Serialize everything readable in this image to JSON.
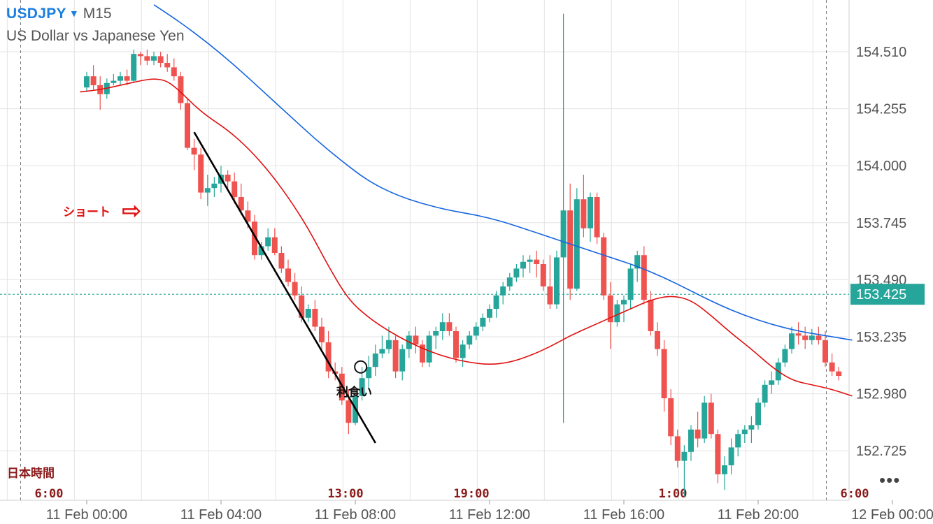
{
  "header": {
    "symbol": "USDJPY",
    "caret": "▼",
    "timeframe": "M15",
    "description": "US Dollar vs Japanese Yen"
  },
  "more_menu": "•••",
  "colors": {
    "bull": "#26a69a",
    "bear": "#ef5350",
    "ma_fast": "#e01010",
    "ma_slow": "#1565e0",
    "grid": "#e3e3e3",
    "price_tag": "#26a69a",
    "annotation_red": "#e01010",
    "jst_label": "#8b1a1a"
  },
  "chart_data": {
    "type": "candlestick",
    "symbol": "USDJPY",
    "timeframe": "M15",
    "y_ticks": [
      "154.510",
      "154.255",
      "154.000",
      "153.745",
      "153.490",
      "153.235",
      "152.980",
      "152.725"
    ],
    "ylim": [
      152.58,
      154.72
    ],
    "x_ticks": [
      "11 Feb 00:00",
      "11 Feb 04:00",
      "11 Feb 08:00",
      "11 Feb 12:00",
      "11 Feb 16:00",
      "11 Feb 20:00",
      "12 Feb 00:00"
    ],
    "x_tick_index": [
      0,
      20,
      40,
      60,
      80,
      100,
      120
    ],
    "current_price": "153.425",
    "current_price_value": 153.425,
    "jst_title": "日本時間",
    "jst_labels": [
      {
        "label": "6:00",
        "index": -10
      },
      {
        "label": "13:00",
        "index": 40
      },
      {
        "label": "19:00",
        "index": 60
      },
      {
        "label": "1:00",
        "index": 90
      },
      {
        "label": "6:00",
        "index": 110
      }
    ],
    "annotations": {
      "short_label": "ショート",
      "short_arrow": "⇨",
      "take_profit_label": "利食い"
    },
    "candles": [
      [
        154.35,
        154.42,
        154.33,
        154.4
      ],
      [
        154.4,
        154.45,
        154.34,
        154.36
      ],
      [
        154.36,
        154.4,
        154.25,
        154.32
      ],
      [
        154.32,
        154.39,
        154.3,
        154.37
      ],
      [
        154.37,
        154.41,
        154.36,
        154.38
      ],
      [
        154.38,
        154.42,
        154.36,
        154.4
      ],
      [
        154.4,
        154.43,
        154.36,
        154.38
      ],
      [
        154.38,
        154.52,
        154.37,
        154.5
      ],
      [
        154.5,
        154.51,
        154.45,
        154.49
      ],
      [
        154.49,
        154.52,
        154.45,
        154.47
      ],
      [
        154.47,
        154.51,
        154.45,
        154.49
      ],
      [
        154.49,
        154.51,
        154.44,
        154.46
      ],
      [
        154.46,
        154.5,
        154.42,
        154.44
      ],
      [
        154.44,
        154.48,
        154.38,
        154.4
      ],
      [
        154.4,
        154.42,
        154.25,
        154.28
      ],
      [
        154.28,
        154.3,
        154.07,
        154.08
      ],
      [
        154.08,
        154.12,
        153.98,
        154.05
      ],
      [
        154.05,
        154.08,
        153.85,
        153.88
      ],
      [
        153.88,
        153.96,
        153.82,
        153.9
      ],
      [
        153.9,
        153.95,
        153.86,
        153.92
      ],
      [
        153.92,
        154.0,
        153.88,
        153.96
      ],
      [
        153.96,
        153.98,
        153.9,
        153.93
      ],
      [
        153.93,
        153.97,
        153.83,
        153.86
      ],
      [
        153.86,
        153.92,
        153.78,
        153.8
      ],
      [
        153.8,
        153.84,
        153.72,
        153.75
      ],
      [
        153.75,
        153.78,
        153.58,
        153.6
      ],
      [
        153.6,
        153.66,
        153.58,
        153.64
      ],
      [
        153.64,
        153.72,
        153.62,
        153.68
      ],
      [
        153.68,
        153.72,
        153.6,
        153.61
      ],
      [
        153.61,
        153.64,
        153.52,
        153.54
      ],
      [
        153.54,
        153.58,
        153.46,
        153.48
      ],
      [
        153.48,
        153.52,
        153.4,
        153.42
      ],
      [
        153.42,
        153.46,
        153.3,
        153.32
      ],
      [
        153.32,
        153.38,
        153.3,
        153.36
      ],
      [
        153.36,
        153.4,
        153.26,
        153.28
      ],
      [
        153.28,
        153.32,
        153.18,
        153.21
      ],
      [
        153.21,
        153.26,
        153.05,
        153.08
      ],
      [
        153.08,
        153.12,
        153.04,
        153.07
      ],
      [
        153.07,
        153.1,
        152.93,
        152.95
      ],
      [
        152.95,
        153.0,
        152.8,
        152.85
      ],
      [
        152.85,
        152.98,
        152.84,
        152.97
      ],
      [
        152.97,
        153.1,
        152.95,
        153.05
      ],
      [
        153.05,
        153.15,
        153.0,
        153.1
      ],
      [
        153.1,
        153.2,
        153.06,
        153.16
      ],
      [
        153.16,
        153.24,
        153.14,
        153.18
      ],
      [
        153.18,
        153.28,
        153.16,
        153.22
      ],
      [
        153.22,
        153.24,
        153.05,
        153.08
      ],
      [
        153.08,
        153.2,
        153.04,
        153.18
      ],
      [
        153.18,
        153.26,
        153.14,
        153.24
      ],
      [
        153.24,
        153.28,
        153.16,
        153.2
      ],
      [
        153.2,
        153.22,
        153.1,
        153.12
      ],
      [
        153.12,
        153.26,
        153.1,
        153.24
      ],
      [
        153.24,
        153.28,
        153.18,
        153.26
      ],
      [
        153.26,
        153.34,
        153.22,
        153.3
      ],
      [
        153.3,
        153.34,
        153.24,
        153.26
      ],
      [
        153.26,
        153.28,
        153.12,
        153.14
      ],
      [
        153.14,
        153.22,
        153.1,
        153.2
      ],
      [
        153.2,
        153.26,
        153.18,
        153.24
      ],
      [
        153.24,
        153.3,
        153.22,
        153.28
      ],
      [
        153.28,
        153.34,
        153.26,
        153.32
      ],
      [
        153.32,
        153.38,
        153.3,
        153.36
      ],
      [
        153.36,
        153.44,
        153.32,
        153.42
      ],
      [
        153.42,
        153.48,
        153.38,
        153.46
      ],
      [
        153.46,
        153.52,
        153.44,
        153.5
      ],
      [
        153.5,
        153.56,
        153.48,
        153.54
      ],
      [
        153.54,
        153.6,
        153.5,
        153.57
      ],
      [
        153.57,
        153.6,
        153.52,
        153.58
      ],
      [
        153.58,
        153.62,
        153.5,
        153.56
      ],
      [
        153.56,
        153.58,
        153.44,
        153.46
      ],
      [
        153.46,
        153.6,
        153.36,
        153.38
      ],
      [
        153.38,
        153.62,
        153.36,
        153.59
      ],
      [
        153.59,
        154.68,
        152.85,
        153.8
      ],
      [
        153.8,
        153.92,
        153.4,
        153.45
      ],
      [
        153.45,
        153.9,
        153.44,
        153.85
      ],
      [
        153.85,
        153.96,
        153.68,
        153.72
      ],
      [
        153.72,
        153.88,
        153.66,
        153.86
      ],
      [
        153.86,
        153.88,
        153.65,
        153.68
      ],
      [
        153.68,
        153.7,
        153.4,
        153.42
      ],
      [
        153.42,
        153.48,
        153.18,
        153.3
      ],
      [
        153.3,
        153.4,
        153.28,
        153.38
      ],
      [
        153.38,
        153.42,
        153.3,
        153.4
      ],
      [
        153.4,
        153.56,
        153.36,
        153.54
      ],
      [
        153.54,
        153.62,
        153.48,
        153.6
      ],
      [
        153.6,
        153.64,
        153.38,
        153.4
      ],
      [
        153.4,
        153.44,
        153.24,
        153.26
      ],
      [
        153.26,
        153.3,
        153.15,
        153.18
      ],
      [
        153.18,
        153.22,
        152.9,
        152.96
      ],
      [
        152.96,
        153.0,
        152.75,
        152.79
      ],
      [
        152.79,
        152.82,
        152.65,
        152.68
      ],
      [
        152.68,
        152.75,
        152.52,
        152.72
      ],
      [
        152.72,
        152.84,
        152.68,
        152.82
      ],
      [
        152.82,
        152.9,
        152.74,
        152.78
      ],
      [
        152.78,
        152.97,
        152.76,
        152.94
      ],
      [
        152.94,
        152.98,
        152.78,
        152.8
      ],
      [
        152.8,
        152.82,
        152.58,
        152.62
      ],
      [
        152.62,
        152.7,
        152.55,
        152.66
      ],
      [
        152.66,
        152.78,
        152.62,
        152.74
      ],
      [
        152.74,
        152.82,
        152.7,
        152.8
      ],
      [
        152.8,
        152.84,
        152.76,
        152.82
      ],
      [
        152.82,
        152.88,
        152.76,
        152.84
      ],
      [
        152.84,
        152.96,
        152.82,
        152.94
      ],
      [
        152.94,
        153.04,
        152.92,
        153.02
      ],
      [
        153.02,
        153.08,
        152.98,
        153.04
      ],
      [
        153.04,
        153.14,
        153.02,
        153.12
      ],
      [
        153.12,
        153.2,
        153.1,
        153.18
      ],
      [
        153.18,
        153.28,
        153.16,
        153.25
      ],
      [
        153.25,
        153.3,
        153.2,
        153.24
      ],
      [
        153.24,
        153.28,
        153.18,
        153.22
      ],
      [
        153.22,
        153.27,
        153.2,
        153.24
      ],
      [
        153.24,
        153.28,
        153.2,
        153.22
      ],
      [
        153.22,
        153.26,
        153.1,
        153.12
      ],
      [
        153.12,
        153.16,
        153.06,
        153.08
      ],
      [
        153.08,
        153.1,
        153.04,
        153.06
      ]
    ],
    "ma_fast": [
      [
        -1,
        154.33
      ],
      [
        2,
        154.34
      ],
      [
        5,
        154.36
      ],
      [
        8,
        154.38
      ],
      [
        10,
        154.39
      ],
      [
        12,
        154.38
      ],
      [
        14,
        154.33
      ],
      [
        16,
        154.27
      ],
      [
        18,
        154.22
      ],
      [
        21,
        154.16
      ],
      [
        24,
        154.08
      ],
      [
        27,
        153.98
      ],
      [
        30,
        153.86
      ],
      [
        33,
        153.72
      ],
      [
        36,
        153.55
      ],
      [
        39,
        153.4
      ],
      [
        42,
        153.32
      ],
      [
        45,
        153.26
      ],
      [
        48,
        153.21
      ],
      [
        51,
        153.17
      ],
      [
        54,
        153.14
      ],
      [
        57,
        153.12
      ],
      [
        60,
        153.11
      ],
      [
        63,
        153.12
      ],
      [
        66,
        153.15
      ],
      [
        69,
        153.19
      ],
      [
        72,
        153.24
      ],
      [
        75,
        153.28
      ],
      [
        78,
        153.32
      ],
      [
        81,
        153.36
      ],
      [
        84,
        153.4
      ],
      [
        87,
        153.42
      ],
      [
        90,
        153.4
      ],
      [
        93,
        153.33
      ],
      [
        96,
        153.25
      ],
      [
        99,
        153.18
      ],
      [
        102,
        153.1
      ],
      [
        105,
        153.04
      ],
      [
        108,
        153.02
      ],
      [
        111,
        153.0
      ],
      [
        114,
        152.97
      ]
    ],
    "ma_slow": [
      [
        10,
        154.72
      ],
      [
        14,
        154.64
      ],
      [
        18,
        154.55
      ],
      [
        22,
        154.45
      ],
      [
        26,
        154.34
      ],
      [
        30,
        154.23
      ],
      [
        34,
        154.12
      ],
      [
        38,
        154.02
      ],
      [
        42,
        153.93
      ],
      [
        46,
        153.87
      ],
      [
        50,
        153.83
      ],
      [
        54,
        153.8
      ],
      [
        58,
        153.78
      ],
      [
        62,
        153.75
      ],
      [
        66,
        153.71
      ],
      [
        70,
        153.67
      ],
      [
        74,
        153.63
      ],
      [
        78,
        153.59
      ],
      [
        82,
        153.55
      ],
      [
        86,
        153.5
      ],
      [
        90,
        153.44
      ],
      [
        94,
        153.38
      ],
      [
        98,
        153.33
      ],
      [
        102,
        153.29
      ],
      [
        106,
        153.26
      ],
      [
        110,
        153.24
      ],
      [
        114,
        153.22
      ]
    ],
    "trend_line": [
      [
        16,
        154.15
      ],
      [
        43,
        152.76
      ]
    ],
    "take_profit_marker": [
      40.8,
      153.1
    ]
  }
}
